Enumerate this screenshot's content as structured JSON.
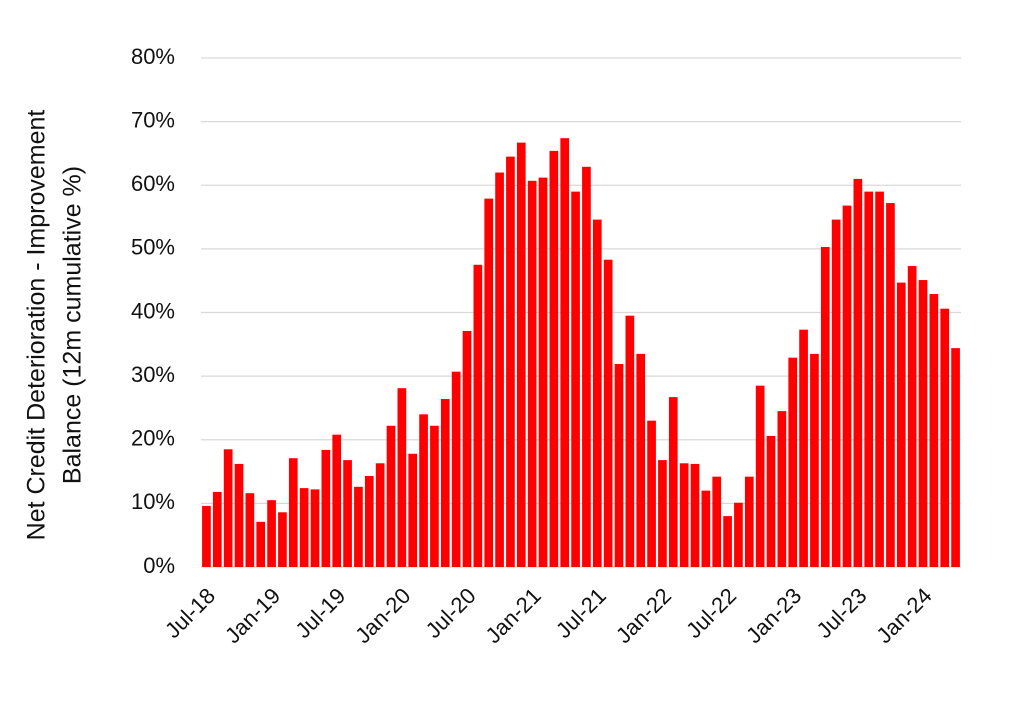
{
  "chart_data": {
    "type": "bar",
    "ylabel": [
      "Net Credit Deterioration - Improvement",
      "Balance (12m cumulative %)"
    ],
    "categories": [
      "Jul-18",
      null,
      null,
      null,
      null,
      null,
      "Jan-19",
      null,
      null,
      null,
      null,
      null,
      "Jul-19",
      null,
      null,
      null,
      null,
      null,
      "Jan-20",
      null,
      null,
      null,
      null,
      null,
      "Jul-20",
      null,
      null,
      null,
      null,
      null,
      "Jan-21",
      null,
      null,
      null,
      null,
      null,
      "Jul-21",
      null,
      null,
      null,
      null,
      null,
      "Jan-22",
      null,
      null,
      null,
      null,
      null,
      "Jul-22",
      null,
      null,
      null,
      null,
      null,
      "Jan-23",
      null,
      null,
      null,
      null,
      null,
      "Jul-23",
      null,
      null,
      null,
      null,
      null,
      "Jan-24",
      null,
      null,
      null
    ],
    "values": [
      9.6,
      11.8,
      18.5,
      16.2,
      11.6,
      7.1,
      10.5,
      8.6,
      17.1,
      12.4,
      12.2,
      18.4,
      20.8,
      16.8,
      12.6,
      14.3,
      16.3,
      22.2,
      28.1,
      17.8,
      24.0,
      22.2,
      26.4,
      30.7,
      37.1,
      47.5,
      57.9,
      62.0,
      64.5,
      66.7,
      60.7,
      61.2,
      65.4,
      67.4,
      59.0,
      62.9,
      54.6,
      48.3,
      31.9,
      39.5,
      33.5,
      23.0,
      16.8,
      26.7,
      16.3,
      16.2,
      12.0,
      14.2,
      8.0,
      10.1,
      14.2,
      28.5,
      20.6,
      24.5,
      32.9,
      37.3,
      33.5,
      50.3,
      54.6,
      56.8,
      61.0,
      59.0,
      59.0,
      57.2,
      44.7,
      47.3,
      45.1,
      42.9,
      40.6,
      34.4
    ],
    "color": "#ff0000",
    "ylim": [
      0,
      80
    ],
    "yticks": [
      {
        "value": 0,
        "label": "0%"
      },
      {
        "value": 10,
        "label": "10%"
      },
      {
        "value": 20,
        "label": "20%"
      },
      {
        "value": 30,
        "label": "30%"
      },
      {
        "value": 40,
        "label": "40%"
      },
      {
        "value": 50,
        "label": "50%"
      },
      {
        "value": 60,
        "label": "60%"
      },
      {
        "value": 70,
        "label": "70%"
      },
      {
        "value": 80,
        "label": "80%"
      }
    ],
    "grid": true
  }
}
